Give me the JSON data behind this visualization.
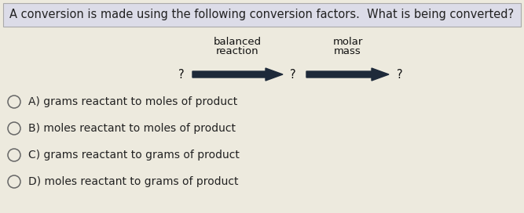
{
  "title": "A conversion is made using the following conversion factors.  What is being converted?",
  "title_fontsize": 10.5,
  "title_bg": "#dcdce8",
  "bg_color": "#edeade",
  "arrow1_label_line1": "balanced",
  "arrow1_label_line2": "reaction",
  "arrow2_label_line1": "molar",
  "arrow2_label_line2": "mass",
  "arrow_color": "#1e2a3a",
  "choices": [
    "A) grams reactant to moles of product",
    "B) moles reactant to moles of product",
    "C) grams reactant to grams of product",
    "D) moles reactant to grams of product"
  ],
  "choice_fontsize": 10,
  "label_fontsize": 9.5,
  "q_fontsize": 10.5,
  "circle_color": "#666666"
}
